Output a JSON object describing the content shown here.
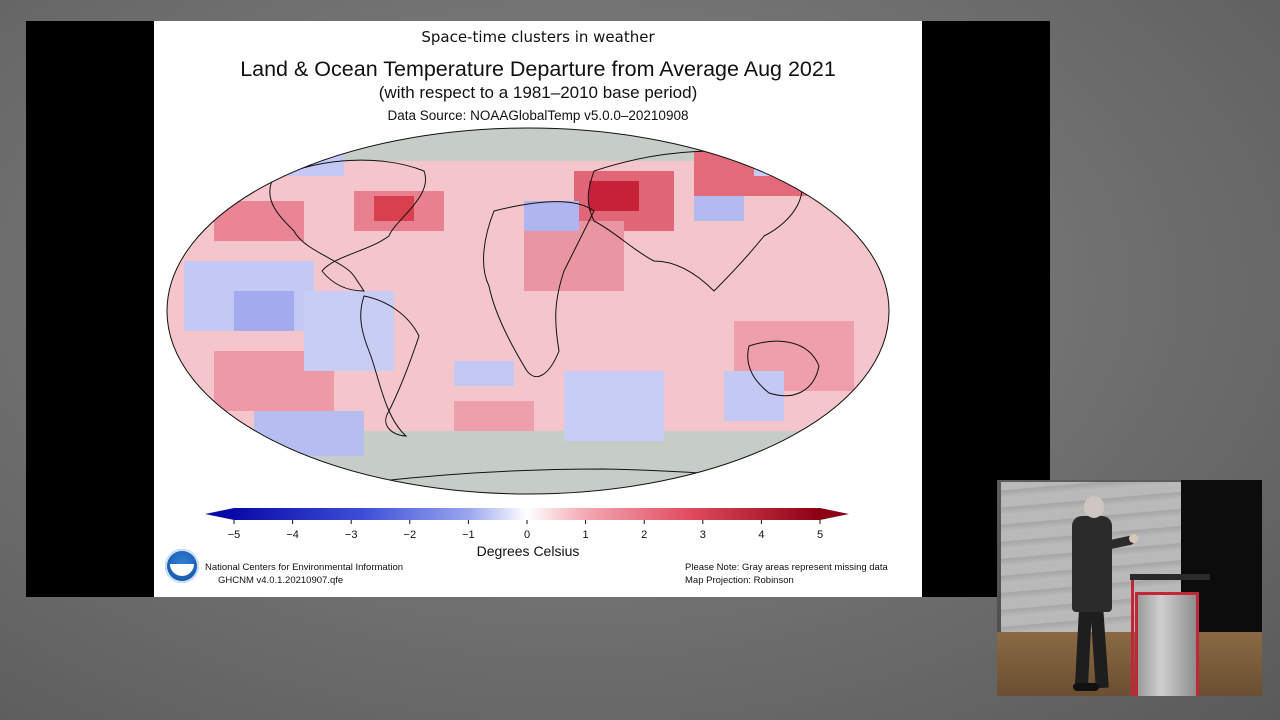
{
  "slide": {
    "header": "Space-time clusters in weather",
    "title": "Land & Ocean Temperature Departure from Average Aug 2021",
    "subtitle": "(with respect to a 1981–2010 base period)",
    "source": "Data Source: NOAAGlobalTemp v5.0.0–20210908"
  },
  "colorbar": {
    "ticks": [
      "−5",
      "−4",
      "−3",
      "−2",
      "−1",
      "0",
      "1",
      "2",
      "3",
      "4",
      "5"
    ],
    "label": "Degrees Celsius",
    "colors": {
      "cold_extreme": "#0a0aa8",
      "cold": "#5a6ee0",
      "cool": "#b9c2f2",
      "neutral": "#ffffff",
      "warm": "#f6b8c0",
      "hot": "#e0566a",
      "hot_extreme": "#8b0013",
      "missing": "#c5cdc6"
    }
  },
  "footer": {
    "org": "National Centers for Environmental Information",
    "dataset": "GHCNM v4.0.1.20210907.qfe",
    "note": "Please Note: Gray areas represent missing data",
    "projection": "Map Projection: Robinson"
  }
}
